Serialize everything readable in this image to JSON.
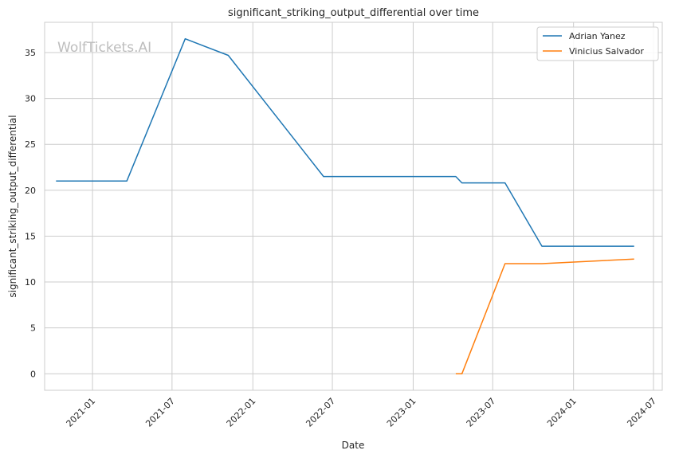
{
  "watermark": "WolfTickets.AI",
  "chart_data": {
    "type": "line",
    "title": "significant_striking_output_differential over time",
    "xlabel": "Date",
    "ylabel": "significant_striking_output_differential",
    "x_axis_kind": "date",
    "xlim": [
      "2020-09-14",
      "2024-07-21"
    ],
    "ylim": [
      -1.8,
      38.3
    ],
    "yticks": [
      0,
      5,
      10,
      15,
      20,
      25,
      30,
      35
    ],
    "xticks": [
      "2021-01-01",
      "2021-07-01",
      "2022-01-01",
      "2022-07-01",
      "2023-01-01",
      "2023-07-01",
      "2024-01-01",
      "2024-07-01"
    ],
    "xtick_labels": [
      "2021-01",
      "2021-07",
      "2022-01",
      "2022-07",
      "2023-01",
      "2023-07",
      "2024-01",
      "2024-07"
    ],
    "grid": true,
    "legend_position": "top-right",
    "series": [
      {
        "name": "Adrian Yanez",
        "color": "#1f77b4",
        "points": [
          {
            "x": "2020-10-10",
            "y": 21.0
          },
          {
            "x": "2021-03-20",
            "y": 21.0
          },
          {
            "x": "2021-07-31",
            "y": 36.5
          },
          {
            "x": "2021-11-06",
            "y": 34.7
          },
          {
            "x": "2022-06-11",
            "y": 21.5
          },
          {
            "x": "2023-04-08",
            "y": 21.5
          },
          {
            "x": "2023-04-22",
            "y": 20.8
          },
          {
            "x": "2023-07-29",
            "y": 20.8
          },
          {
            "x": "2023-10-21",
            "y": 13.9
          },
          {
            "x": "2024-05-18",
            "y": 13.9
          }
        ]
      },
      {
        "name": "Vinicius Salvador",
        "color": "#ff7f0e",
        "points": [
          {
            "x": "2023-04-08",
            "y": 0.0
          },
          {
            "x": "2023-04-22",
            "y": 0.0
          },
          {
            "x": "2023-07-29",
            "y": 12.0
          },
          {
            "x": "2023-10-21",
            "y": 12.0
          },
          {
            "x": "2024-05-18",
            "y": 12.5
          }
        ]
      }
    ]
  }
}
